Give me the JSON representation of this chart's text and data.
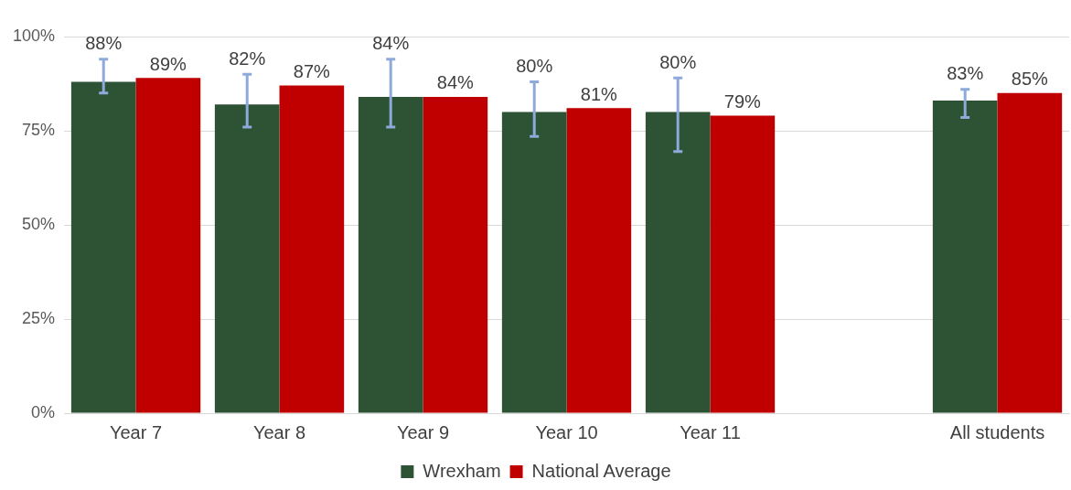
{
  "chart_data": {
    "type": "bar",
    "categories": [
      "Year 7",
      "Year 8",
      "Year 9",
      "Year 10",
      "Year 11",
      null,
      "All students"
    ],
    "series": [
      {
        "name": "Wrexham",
        "color": "#2e5234",
        "values": [
          88,
          82,
          84,
          80,
          80,
          null,
          83
        ],
        "value_labels": [
          "88%",
          "82%",
          "84%",
          "80%",
          "80%",
          null,
          "83%"
        ],
        "errors": [
          [
            85,
            94
          ],
          [
            76,
            90
          ],
          [
            76,
            94
          ],
          [
            73.5,
            88
          ],
          [
            69.5,
            89
          ],
          null,
          [
            78.5,
            86
          ]
        ]
      },
      {
        "name": "National Average",
        "color": "#c00000",
        "values": [
          89,
          87,
          84,
          81,
          79,
          null,
          85
        ],
        "value_labels": [
          "89%",
          "87%",
          "84%",
          "81%",
          "79%",
          null,
          "85%"
        ]
      }
    ],
    "ylim": [
      0,
      100
    ],
    "yticks": [
      {
        "value": 0,
        "label": "0%"
      },
      {
        "value": 25,
        "label": "25%"
      },
      {
        "value": 50,
        "label": "50%"
      },
      {
        "value": 75,
        "label": "75%"
      },
      {
        "value": 100,
        "label": "100%"
      }
    ],
    "grid": "y",
    "legend": "bottom"
  }
}
